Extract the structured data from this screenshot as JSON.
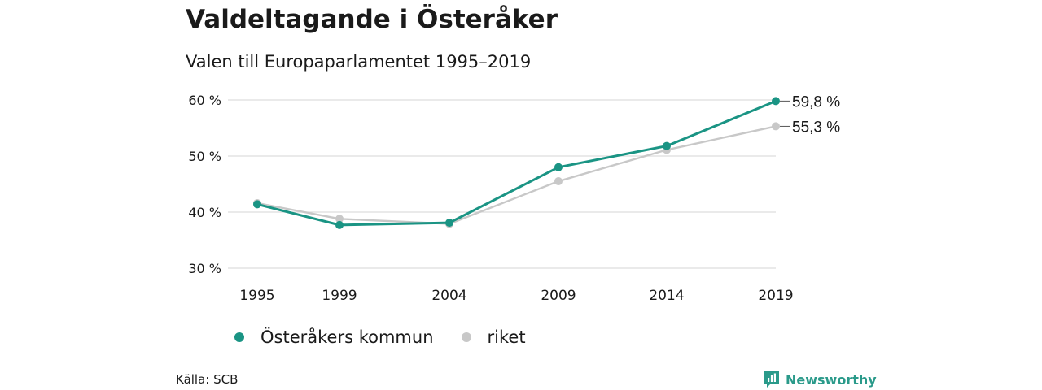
{
  "title": "Valdeltagande i Österåker",
  "subtitle": "Valen till Europaparlamentet 1995–2019",
  "source": "Källa: SCB",
  "brand": {
    "name": "Newsworthy",
    "icon": "newsworthy-logo-icon"
  },
  "colors": {
    "primary": "#1a9484",
    "secondary": "#c8c8c8",
    "grid": "#dddddd",
    "brand": "#2a9a8a"
  },
  "chart_data": {
    "type": "line",
    "x": [
      1995,
      1999,
      2004,
      2009,
      2014,
      2019
    ],
    "x_tick_labels": [
      "1995",
      "1999",
      "2004",
      "2009",
      "2014",
      "2019"
    ],
    "ylim": [
      30,
      60
    ],
    "y_ticks": [
      30,
      40,
      50,
      60
    ],
    "y_tick_labels": [
      "30 %",
      "40 %",
      "50 %",
      "60 %"
    ],
    "grid": true,
    "legend_position": "bottom-left",
    "series": [
      {
        "name": "Österåkers kommun",
        "color": "#1a9484",
        "values": [
          41.4,
          37.7,
          38.1,
          48.0,
          51.8,
          59.8
        ],
        "end_label": "59,8 %"
      },
      {
        "name": "riket",
        "color": "#c8c8c8",
        "values": [
          41.6,
          38.8,
          37.9,
          45.5,
          51.1,
          55.3
        ],
        "end_label": "55,3 %"
      }
    ]
  }
}
